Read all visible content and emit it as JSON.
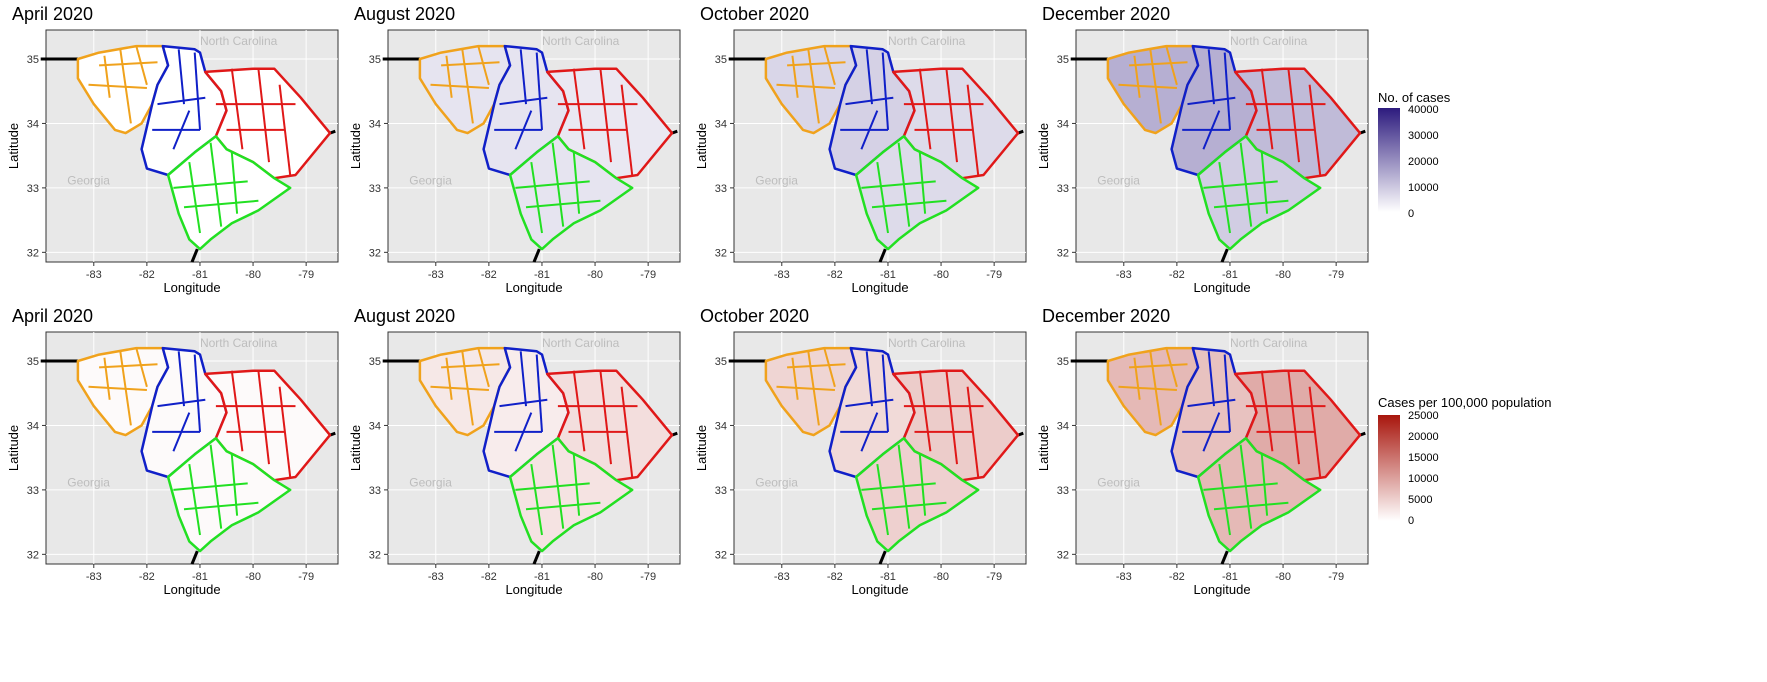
{
  "axes": {
    "x_label": "Longitude",
    "y_label": "Latitude",
    "x_ticks": [
      "-83",
      "-82",
      "-81",
      "-80",
      "-79"
    ],
    "y_ticks": [
      "35",
      "34",
      "33",
      "32"
    ]
  },
  "region_labels": {
    "nc": "North Carolina",
    "ga": "Georgia"
  },
  "rows": [
    {
      "panels": [
        {
          "title": "April 2020"
        },
        {
          "title": "August 2020"
        },
        {
          "title": "October 2020"
        },
        {
          "title": "December 2020"
        }
      ],
      "legend": {
        "title": "No. of cases",
        "ticks": [
          "40000",
          "30000",
          "20000",
          "10000",
          "0"
        ],
        "color_high": "#2d1b7e",
        "color_low": "#ffffff"
      }
    },
    {
      "panels": [
        {
          "title": "April 2020"
        },
        {
          "title": "August 2020"
        },
        {
          "title": "October 2020"
        },
        {
          "title": "December 2020"
        }
      ],
      "legend": {
        "title": "Cases per 100,000 population",
        "ticks": [
          "25000",
          "20000",
          "15000",
          "10000",
          "5000",
          "0"
        ],
        "color_high": "#a8160d",
        "color_low": "#ffffff"
      }
    }
  ],
  "region_colors": {
    "upstate": "#f0a21c",
    "midlands": "#1020c8",
    "peedee": "#e01818",
    "lowcountry": "#22e022"
  },
  "colors": {
    "panel_bg": "#e8e8e8",
    "grid": "#ffffff"
  }
}
